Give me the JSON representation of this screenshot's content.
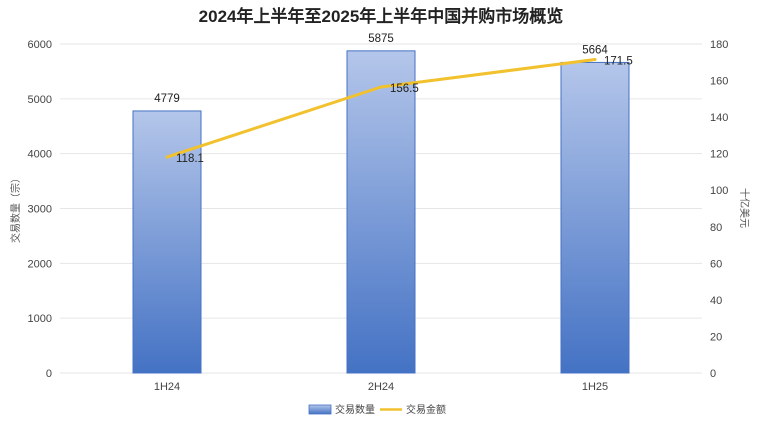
{
  "chart_data": {
    "type": "bar",
    "title": "2024年上半年至2025年上半年中国并购市场概览",
    "categories": [
      "1H24",
      "2H24",
      "1H25"
    ],
    "series": [
      {
        "name": "交易数量",
        "type": "bar",
        "axis": "left",
        "values": [
          4779,
          5875,
          5664
        ],
        "labels": [
          "4779",
          "5875",
          "5664"
        ],
        "color_top": "#b4c6ea",
        "color_bottom": "#4472c4",
        "border": "#4472c4"
      },
      {
        "name": "交易金额",
        "type": "line",
        "axis": "right",
        "values": [
          118.1,
          156.5,
          171.5
        ],
        "labels": [
          "118.1",
          "156.5",
          "171.5"
        ],
        "color": "#f2c12e"
      }
    ],
    "ylabel": "交易数量（宗）",
    "y2label": "十亿美元",
    "ylim": [
      0,
      6000
    ],
    "y2lim": [
      0,
      180
    ],
    "yticks": [
      "0",
      "1000",
      "2000",
      "3000",
      "4000",
      "5000",
      "6000"
    ],
    "y2ticks": [
      "0",
      "20",
      "40",
      "60",
      "80",
      "100",
      "120",
      "140",
      "160",
      "180"
    ],
    "grid": true,
    "legend": "bottom-center"
  }
}
